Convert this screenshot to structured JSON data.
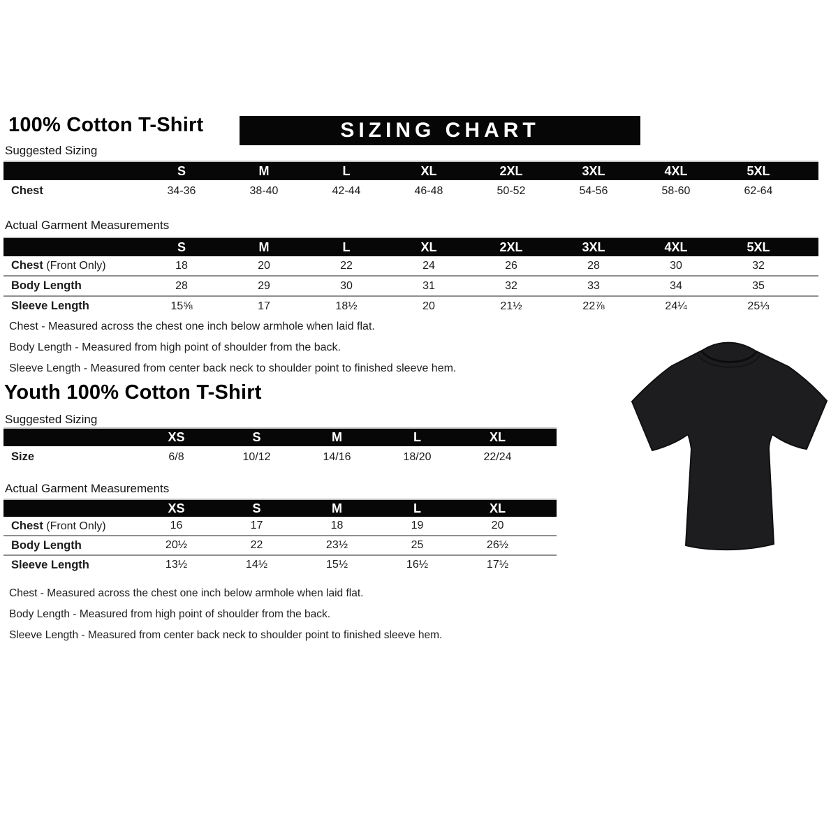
{
  "page": {
    "banner": "SIZING CHART"
  },
  "adult": {
    "title": "100% Cotton T-Shirt",
    "suggested": {
      "label": "Suggested Sizing",
      "columns": [
        "S",
        "M",
        "L",
        "XL",
        "2XL",
        "3XL",
        "4XL",
        "5XL"
      ],
      "rows": [
        {
          "label": "Chest",
          "values": [
            "34-36",
            "38-40",
            "42-44",
            "46-48",
            "50-52",
            "54-56",
            "58-60",
            "62-64"
          ]
        }
      ]
    },
    "actual": {
      "label": "Actual Garment Measurements",
      "columns": [
        "S",
        "M",
        "L",
        "XL",
        "2XL",
        "3XL",
        "4XL",
        "5XL"
      ],
      "rows": [
        {
          "label": "Chest",
          "label_suffix": "(Front Only)",
          "values": [
            "18",
            "20",
            "22",
            "24",
            "26",
            "28",
            "30",
            "32"
          ]
        },
        {
          "label": "Body Length",
          "values": [
            "28",
            "29",
            "30",
            "31",
            "32",
            "33",
            "34",
            "35"
          ]
        },
        {
          "label": "Sleeve Length",
          "values": [
            "15⅝",
            "17",
            "18½",
            "20",
            "21½",
            "22⅞",
            "24¼",
            "25⅓"
          ]
        }
      ]
    },
    "notes": [
      "Chest - Measured across the chest one inch below armhole when laid flat.",
      "Body Length - Measured from high point of shoulder from the back.",
      "Sleeve Length - Measured from center back neck to shoulder point to finished sleeve hem."
    ]
  },
  "youth": {
    "title": "Youth 100% Cotton T-Shirt",
    "suggested": {
      "label": "Suggested Sizing",
      "columns": [
        "XS",
        "S",
        "M",
        "L",
        "XL"
      ],
      "rows": [
        {
          "label": "Size",
          "values": [
            "6/8",
            "10/12",
            "14/16",
            "18/20",
            "22/24"
          ]
        }
      ]
    },
    "actual": {
      "label": "Actual Garment Measurements",
      "columns": [
        "XS",
        "S",
        "M",
        "L",
        "XL"
      ],
      "rows": [
        {
          "label": "Chest",
          "label_suffix": "(Front Only)",
          "values": [
            "16",
            "17",
            "18",
            "19",
            "20"
          ]
        },
        {
          "label": "Body Length",
          "values": [
            "20½",
            "22",
            "23½",
            "25",
            "26½"
          ]
        },
        {
          "label": "Sleeve Length",
          "values": [
            "13½",
            "14½",
            "15½",
            "16½",
            "17½"
          ]
        }
      ]
    },
    "notes": [
      "Chest - Measured across the chest one inch below armhole when laid flat.",
      "Body Length - Measured from high point of shoulder from the back.",
      "Sleeve Length - Measured from center back neck to shoulder point to finished sleeve hem."
    ]
  },
  "tshirt_image": {
    "description": "black short-sleeve crew-neck t-shirt",
    "color": "#1d1d1f"
  }
}
